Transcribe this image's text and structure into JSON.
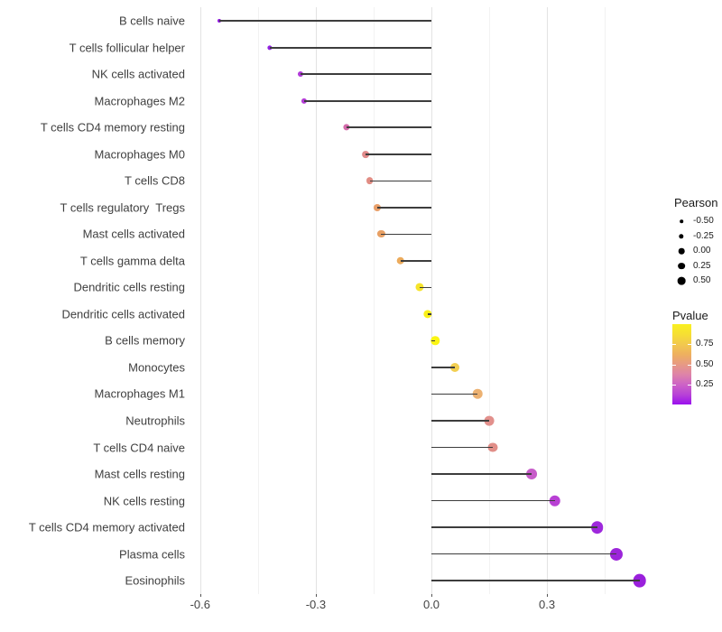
{
  "chart_data": {
    "type": "scatter",
    "subtype": "lollipop-horizontal",
    "title": "",
    "xlabel": "",
    "ylabel": "",
    "categories": [
      "B cells naive",
      "T cells follicular helper",
      "NK cells activated",
      "Macrophages M2",
      "T cells CD4 memory resting",
      "Macrophages M0",
      "T cells CD8",
      "T cells regulatory  Tregs",
      "Mast cells activated",
      "T cells gamma delta",
      "Dendritic cells resting",
      "Dendritic cells activated",
      "B cells memory",
      "Monocytes",
      "Macrophages M1",
      "Neutrophils",
      "T cells CD4 naive",
      "Mast cells resting",
      "NK cells resting",
      "T cells CD4 memory activated",
      "Plasma cells",
      "Eosinophils"
    ],
    "series": [
      {
        "name": "Pearson",
        "values": [
          -0.55,
          -0.42,
          -0.34,
          -0.33,
          -0.22,
          -0.17,
          -0.16,
          -0.14,
          -0.13,
          -0.08,
          -0.03,
          -0.01,
          0.01,
          0.06,
          0.12,
          0.15,
          0.16,
          0.26,
          0.32,
          0.43,
          0.48,
          0.54
        ]
      },
      {
        "name": "Pvalue (estimated from color scale)",
        "values": [
          0.01,
          0.05,
          0.12,
          0.13,
          0.33,
          0.45,
          0.46,
          0.55,
          0.56,
          0.62,
          0.85,
          0.93,
          0.95,
          0.75,
          0.63,
          0.47,
          0.46,
          0.2,
          0.15,
          0.05,
          0.03,
          0.01
        ]
      }
    ],
    "point_colors": [
      "#8d15dd",
      "#9322e2",
      "#b03ad8",
      "#b33cd6",
      "#d46aaa",
      "#e08a8a",
      "#e18d84",
      "#e89e68",
      "#e8a064",
      "#ecab5c",
      "#f6e42b",
      "#f9f019",
      "#fbf513",
      "#f2cf52",
      "#ecb171",
      "#e2908c",
      "#e18e88",
      "#c75cc9",
      "#b840d4",
      "#9e28dc",
      "#9c25da",
      "#9a20dc"
    ],
    "x_axis": {
      "tick_labels": [
        "-0.6",
        "-0.3",
        "0.0",
        "0.3"
      ],
      "tick_values": [
        -0.6,
        -0.3,
        0.0,
        0.3
      ],
      "minor_tick_values": [
        -0.45,
        -0.15,
        0.15,
        0.45
      ],
      "range": [
        -0.63,
        0.575
      ]
    },
    "baseline": 0,
    "grid": "vertical major and minor gridlines, light grey, white background",
    "legend_position": "right"
  },
  "legend": {
    "size": {
      "title": "Pearson",
      "entries": [
        {
          "label": "-0.50",
          "value": -0.5
        },
        {
          "label": "-0.25",
          "value": -0.25
        },
        {
          "label": "0.00",
          "value": 0.0
        },
        {
          "label": "0.25",
          "value": 0.25
        },
        {
          "label": "0.50",
          "value": 0.5
        }
      ]
    },
    "color": {
      "title": "Pvalue",
      "ticks": [
        {
          "label": "0.75",
          "value": 0.75
        },
        {
          "label": "0.50",
          "value": 0.5
        },
        {
          "label": "0.25",
          "value": 0.25
        }
      ],
      "gradient_top_to_bottom": [
        "#f9f021",
        "#f6df33",
        "#f2c94e",
        "#eeb05e",
        "#e79a84",
        "#de84a8",
        "#cd63c6",
        "#b843d6",
        "#9a10ee"
      ]
    }
  },
  "colors": {
    "background": "#ffffff",
    "stem": "#3d3d3d",
    "grid_major": "#e3e3e3",
    "grid_minor": "#f2f2f2",
    "axis_text": "#404040",
    "legend_dot": "#000000"
  }
}
